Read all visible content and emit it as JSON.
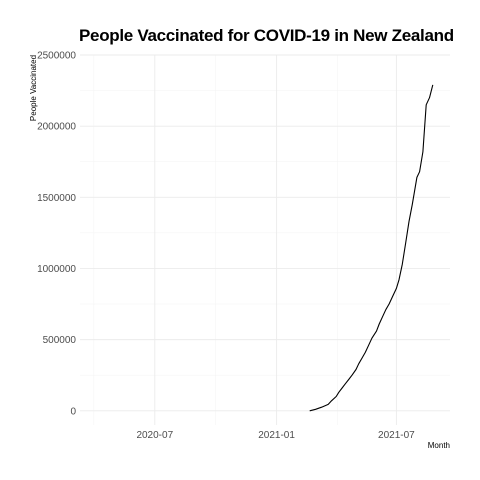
{
  "chart_data": {
    "type": "line",
    "title": "People Vaccinated for COVID-19 in New Zealand",
    "xlabel": "Month",
    "ylabel": "People Vaccinated",
    "x_type": "date",
    "xlim": [
      "2020-03-10",
      "2021-09-20"
    ],
    "ylim": [
      -100000,
      2500000
    ],
    "x_ticks": [
      {
        "date": "2020-07-01",
        "label": "2020-07"
      },
      {
        "date": "2021-01-01",
        "label": "2021-01"
      },
      {
        "date": "2021-07-01",
        "label": "2021-07"
      }
    ],
    "y_ticks": [
      {
        "value": 0,
        "label": "0"
      },
      {
        "value": 500000,
        "label": "500000"
      },
      {
        "value": 1000000,
        "label": "1000000"
      },
      {
        "value": 1500000,
        "label": "1500000"
      },
      {
        "value": 2000000,
        "label": "2000000"
      },
      {
        "value": 2500000,
        "label": "2500000"
      }
    ],
    "grid": true,
    "legend": "none",
    "line_color": "#000000",
    "series": [
      {
        "x": [
          "2021-02-20",
          "2021-03-01",
          "2021-03-10",
          "2021-03-20",
          "2021-03-25",
          "2021-04-01",
          "2021-04-05",
          "2021-04-10",
          "2021-04-15",
          "2021-04-20",
          "2021-04-25",
          "2021-05-01",
          "2021-05-05",
          "2021-05-10",
          "2021-05-15",
          "2021-05-20",
          "2021-05-25",
          "2021-06-01",
          "2021-06-05",
          "2021-06-10",
          "2021-06-15",
          "2021-06-20",
          "2021-06-25",
          "2021-07-01",
          "2021-07-05",
          "2021-07-10",
          "2021-07-15",
          "2021-07-20",
          "2021-07-25",
          "2021-08-01",
          "2021-08-05",
          "2021-08-10",
          "2021-08-15",
          "2021-08-20",
          "2021-08-25"
        ],
        "y": [
          0,
          10000,
          25000,
          45000,
          70000,
          100000,
          130000,
          160000,
          190000,
          220000,
          250000,
          290000,
          330000,
          370000,
          410000,
          460000,
          510000,
          560000,
          610000,
          660000,
          710000,
          750000,
          800000,
          860000,
          920000,
          1030000,
          1180000,
          1330000,
          1450000,
          1640000,
          1680000,
          1820000,
          2150000,
          2200000,
          2290000
        ]
      }
    ]
  }
}
